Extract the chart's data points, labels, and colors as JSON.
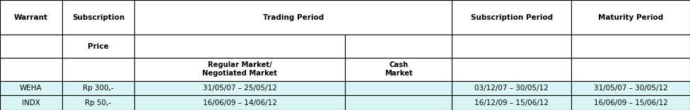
{
  "figsize": [
    9.76,
    1.56
  ],
  "dpi": 100,
  "header_bg": "#ffffff",
  "data_bg": "#d8f4f4",
  "border_color": "#000000",
  "cols": [
    0.0,
    0.09,
    0.195,
    0.375,
    0.5,
    0.655,
    0.828,
    1.0
  ],
  "rows": [
    1.0,
    0.685,
    0.475,
    0.265,
    0.133,
    0.0
  ],
  "header_row1": {
    "warrant": "Warrant",
    "subscription": "Subscription",
    "trading_period": "Trading Period",
    "subscription_period": "Subscription Period",
    "maturity_period": "Maturity Period"
  },
  "header_row2": {
    "price": "Price"
  },
  "header_row3": {
    "regular_market": "Regular Market/\nNegotiated Market",
    "cash_market": "Cash\nMarket"
  },
  "data_rows": [
    [
      "WEHA",
      "Rp 300,-",
      "31/05/07 – 25/05/12",
      "",
      "03/12/07 – 30/05/12",
      "31/05/07 – 30/05/12"
    ],
    [
      "INDX",
      "Rp 50,-",
      "16/06/09 – 14/06/12",
      "",
      "16/12/09 – 15/06/12",
      "16/06/09 – 15/06/12"
    ]
  ],
  "font_size": 7.5,
  "font_size_sm": 7.2
}
